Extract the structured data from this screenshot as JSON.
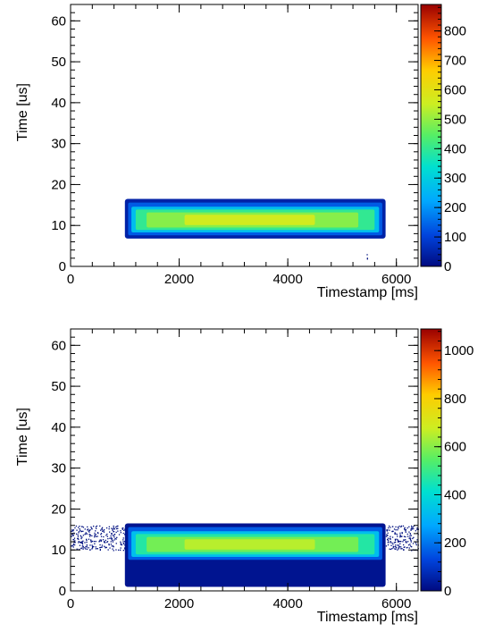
{
  "chart_data": [
    {
      "type": "heatmap",
      "xlabel": "Timestamp [ms]",
      "ylabel": "Time [us]",
      "xlim": [
        0,
        6400
      ],
      "ylim": [
        0,
        64
      ],
      "x_ticks": [
        "0",
        "2000",
        "4000",
        "6000"
      ],
      "y_ticks": [
        "0",
        "10",
        "20",
        "30",
        "40",
        "50",
        "60"
      ],
      "colorbar": {
        "zlim": [
          0,
          890
        ],
        "ticks": [
          "0",
          "100",
          "200",
          "300",
          "400",
          "500",
          "600",
          "700",
          "800"
        ]
      },
      "bands": [
        {
          "x": [
            1000,
            5800
          ],
          "y": [
            6.8,
            16.5
          ],
          "level": 0.05
        },
        {
          "x": [
            1060,
            5740
          ],
          "y": [
            7.6,
            15.6
          ],
          "level": 0.15
        },
        {
          "x": [
            1120,
            5680
          ],
          "y": [
            8.3,
            14.6
          ],
          "level": 0.3
        },
        {
          "x": [
            1200,
            5600
          ],
          "y": [
            8.9,
            13.9
          ],
          "level": 0.45
        },
        {
          "x": [
            1400,
            5300
          ],
          "y": [
            9.5,
            13.2
          ],
          "level": 0.55
        },
        {
          "x": [
            2100,
            4500
          ],
          "y": [
            10.1,
            12.6
          ],
          "level": 0.63
        }
      ],
      "outliers": [
        {
          "x": [
            5450,
            5460
          ],
          "y": [
            0.5,
            3.8
          ]
        }
      ]
    },
    {
      "type": "heatmap",
      "xlabel": "Timestamp [ms]",
      "ylabel": "Time [us]",
      "xlim": [
        0,
        6400
      ],
      "ylim": [
        0,
        64
      ],
      "x_ticks": [
        "0",
        "2000",
        "4000",
        "6000"
      ],
      "y_ticks": [
        "0",
        "10",
        "20",
        "30",
        "40",
        "50",
        "60"
      ],
      "colorbar": {
        "zlim": [
          0,
          1090
        ],
        "ticks": [
          "0",
          "200",
          "400",
          "600",
          "800",
          "1000"
        ]
      },
      "bands": [
        {
          "x": [
            1000,
            5800
          ],
          "y": [
            1.0,
            16.5
          ],
          "level": 0.02
        },
        {
          "x": [
            1060,
            5740
          ],
          "y": [
            7.6,
            15.6
          ],
          "level": 0.15
        },
        {
          "x": [
            1120,
            5680
          ],
          "y": [
            8.3,
            14.6
          ],
          "level": 0.3
        },
        {
          "x": [
            1200,
            5600
          ],
          "y": [
            8.9,
            13.9
          ],
          "level": 0.43
        },
        {
          "x": [
            1400,
            5300
          ],
          "y": [
            9.5,
            13.2
          ],
          "level": 0.53
        },
        {
          "x": [
            2100,
            4500
          ],
          "y": [
            10.1,
            12.6
          ],
          "level": 0.6
        }
      ],
      "outliers": [
        {
          "x": [
            0,
            1000
          ],
          "y": [
            10.0,
            16.0
          ]
        },
        {
          "x": [
            5800,
            6400
          ],
          "y": [
            10.0,
            16.0
          ]
        }
      ]
    }
  ]
}
